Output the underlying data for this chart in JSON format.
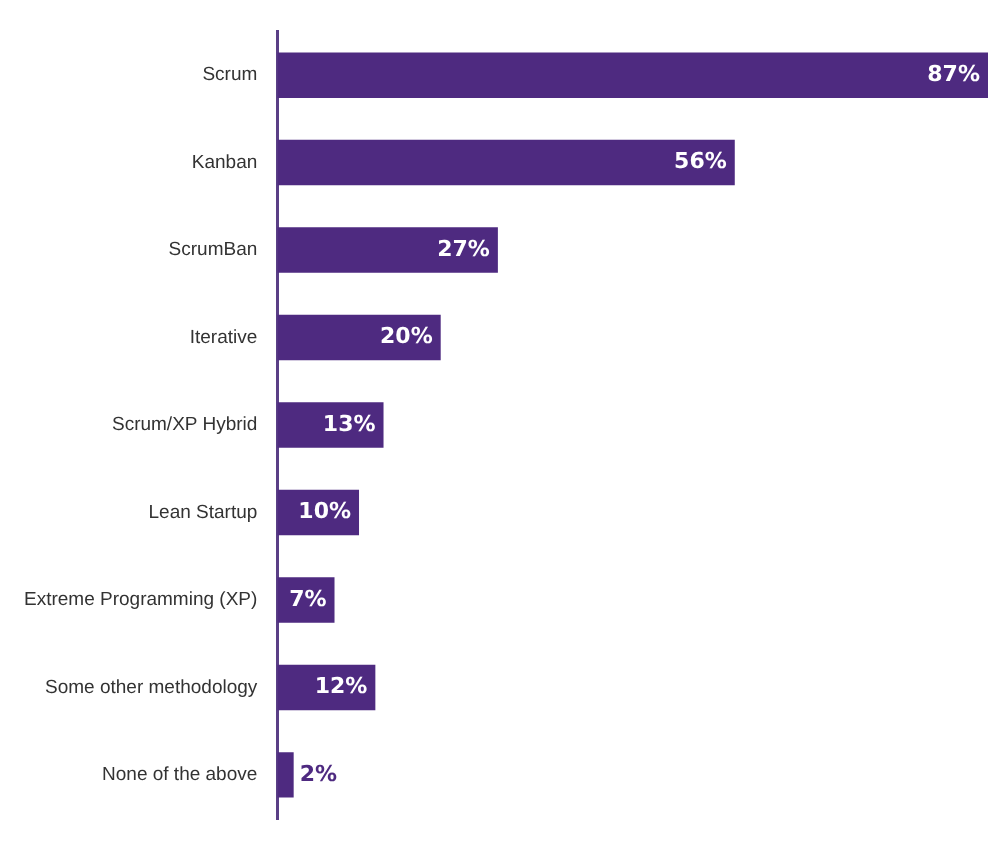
{
  "chart_data": {
    "type": "bar",
    "orientation": "horizontal",
    "categories": [
      "Scrum",
      "Kanban",
      "ScrumBan",
      "Iterative",
      "Scrum/XP Hybrid",
      "Lean Startup",
      "Extreme Programming (XP)",
      "Some other methodology",
      "None of the above"
    ],
    "values": [
      87,
      56,
      27,
      20,
      13,
      10,
      7,
      12,
      2
    ],
    "value_labels": [
      "87%",
      "56%",
      "27%",
      "20%",
      "13%",
      "10%",
      "7%",
      "12%",
      "2%"
    ],
    "color": "#4e2a80",
    "xlim": [
      0,
      87
    ],
    "tick_labels": "y",
    "legend": false
  }
}
